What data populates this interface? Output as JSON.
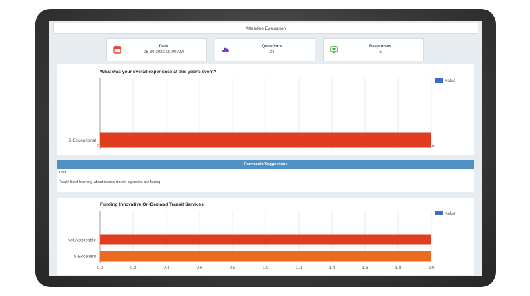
{
  "header": {
    "title": "Attendee Evaluation"
  },
  "stats": [
    {
      "icon": "calendar-icon",
      "label": "Date",
      "value": "05-30-2023 09:00 AM",
      "color": "#e8442b"
    },
    {
      "icon": "question-cloud-icon",
      "label": "Questions",
      "value": "24",
      "color": "#6a35c8"
    },
    {
      "icon": "monitor-icon",
      "label": "Responses",
      "value": "5",
      "color": "#3aa83a"
    }
  ],
  "comments": {
    "title": "Comments/Suggestions",
    "entries": [
      "Test",
      "Really liked learning about issues transit agencies are facing"
    ]
  },
  "chart_data": [
    {
      "type": "bar",
      "orientation": "horizontal",
      "title": "What was your overall experience at this year's event?",
      "categories": [
        "5-Exceptional"
      ],
      "series": [
        {
          "name": "value",
          "values": [
            5.0
          ],
          "colors": [
            "#e03c1f"
          ]
        }
      ],
      "xlim": [
        0,
        5
      ],
      "xticks": [
        "0.0",
        "0.5",
        "1.0",
        "1.5",
        "2.0",
        "2.5",
        "3.0",
        "3.5",
        "4.0",
        "4.5",
        "5.0"
      ],
      "legend": "top-right",
      "legend_color": "#3b6cc9",
      "grid": true
    },
    {
      "type": "bar",
      "orientation": "horizontal",
      "title": "Funding Innovative On-Demand Transit Services",
      "categories": [
        "Not Applicable",
        "5-Excellent"
      ],
      "series": [
        {
          "name": "value",
          "values": [
            2.0,
            2.0
          ],
          "colors": [
            "#e03c1f",
            "#ea6a20"
          ]
        }
      ],
      "xlim": [
        0,
        2
      ],
      "xticks": [
        "0.0",
        "0.2",
        "0.4",
        "0.6",
        "0.8",
        "1.0",
        "1.2",
        "1.4",
        "1.6",
        "1.8",
        "2.0"
      ],
      "legend": "top-right",
      "legend_color": "#3b6cc9",
      "grid": true
    }
  ]
}
